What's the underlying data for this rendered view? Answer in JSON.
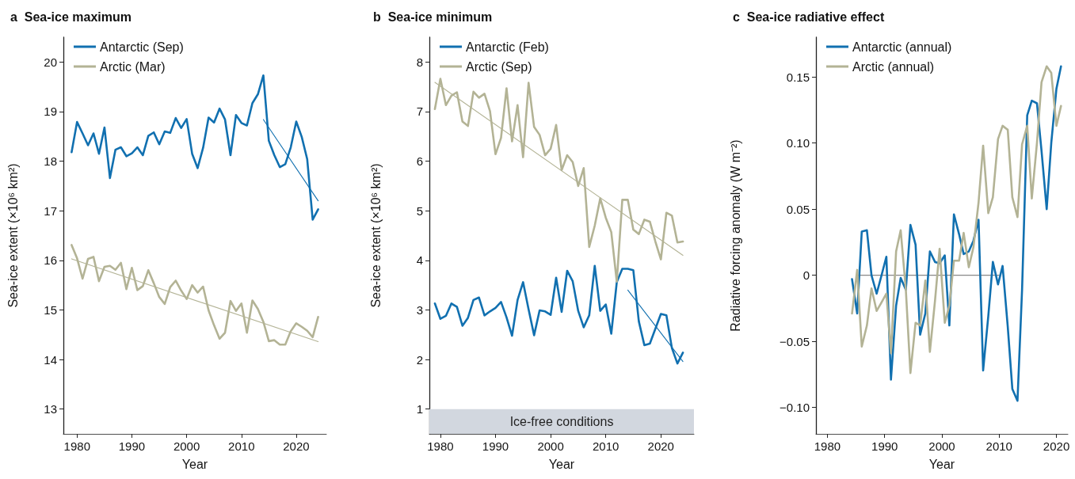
{
  "chart_data": [
    {
      "type": "line",
      "title": "a  Sea-ice maximum",
      "xlabel": "Year",
      "ylabel": "Sea-ice extent (×10⁶ km²)",
      "xlim": [
        1977.5,
        2025.5
      ],
      "xticks": [
        1980,
        1990,
        2000,
        2010,
        2020
      ],
      "ylim": [
        12.5,
        20.5
      ],
      "yticks": [
        13,
        14,
        15,
        16,
        17,
        18,
        19,
        20
      ],
      "legend": "top left",
      "x": [
        1979,
        1980,
        1981,
        1982,
        1983,
        1984,
        1985,
        1986,
        1987,
        1988,
        1989,
        1990,
        1991,
        1992,
        1993,
        1994,
        1995,
        1996,
        1997,
        1998,
        1999,
        2000,
        2001,
        2002,
        2003,
        2004,
        2005,
        2006,
        2007,
        2008,
        2009,
        2010,
        2011,
        2012,
        2013,
        2014,
        2015,
        2016,
        2017,
        2018,
        2019,
        2020,
        2021,
        2022,
        2023,
        2024
      ],
      "series": [
        {
          "name": "Antarctic (Sep)",
          "color": "#1170b0",
          "values": [
            18.18,
            18.79,
            18.56,
            18.32,
            18.56,
            18.15,
            18.68,
            17.66,
            18.23,
            18.28,
            18.1,
            18.16,
            18.28,
            18.12,
            18.51,
            18.58,
            18.34,
            18.6,
            18.57,
            18.87,
            18.67,
            18.85,
            18.15,
            17.86,
            18.27,
            18.88,
            18.78,
            19.06,
            18.84,
            18.12,
            18.93,
            18.77,
            18.72,
            19.17,
            19.35,
            19.73,
            18.41,
            18.12,
            17.88,
            17.94,
            18.28,
            18.8,
            18.49,
            18.04,
            16.82,
            17.03
          ]
        },
        {
          "name": "Arctic (Mar)",
          "color": "#b3b395",
          "values": [
            16.31,
            16.04,
            15.63,
            16.03,
            16.07,
            15.58,
            15.87,
            15.89,
            15.81,
            15.95,
            15.42,
            15.85,
            15.4,
            15.48,
            15.8,
            15.54,
            15.26,
            15.12,
            15.46,
            15.59,
            15.39,
            15.22,
            15.5,
            15.35,
            15.47,
            14.99,
            14.69,
            14.42,
            14.54,
            15.18,
            14.98,
            15.13,
            14.54,
            15.19,
            15.02,
            14.76,
            14.37,
            14.39,
            14.3,
            14.3,
            14.57,
            14.73,
            14.66,
            14.58,
            14.45,
            14.86
          ]
        },
        {
          "color": "#1170b0",
          "x": [
            2014,
            2024
          ],
          "values": [
            18.84,
            17.2
          ]
        },
        {
          "color": "#b3b395",
          "x": [
            1979,
            2024
          ],
          "values": [
            16.03,
            14.36
          ]
        }
      ]
    },
    {
      "type": "line",
      "title": "b  Sea-ice minimum",
      "xlabel": "Year",
      "ylabel": "Sea-ice extent (×10⁶ km²)",
      "xlim": [
        1978,
        2026
      ],
      "xticks": [
        1980,
        1990,
        2000,
        2010,
        2020
      ],
      "ylim": [
        0.5,
        8.5
      ],
      "yticks": [
        1,
        2,
        3,
        4,
        5,
        6,
        7,
        8
      ],
      "legend": "top left",
      "bands": [
        {
          "axis": "y",
          "from": 0.5,
          "to": 1,
          "label": "Ice-free conditions",
          "color": "#d2d7df"
        }
      ],
      "x": [
        1979,
        1980,
        1981,
        1982,
        1983,
        1984,
        1985,
        1986,
        1987,
        1988,
        1989,
        1990,
        1991,
        1992,
        1993,
        1994,
        1995,
        1996,
        1997,
        1998,
        1999,
        2000,
        2001,
        2002,
        2003,
        2004,
        2005,
        2006,
        2007,
        2008,
        2009,
        2010,
        2011,
        2012,
        2013,
        2014,
        2015,
        2016,
        2017,
        2018,
        2019,
        2020,
        2021,
        2022,
        2023,
        2024
      ],
      "series": [
        {
          "name": "Antarctic (Feb)",
          "color": "#1170b0",
          "values": [
            3.13,
            2.82,
            2.88,
            3.13,
            3.06,
            2.68,
            2.84,
            3.2,
            3.25,
            2.89,
            2.97,
            3.04,
            3.16,
            2.85,
            2.48,
            3.2,
            3.56,
            3.01,
            2.49,
            2.99,
            2.97,
            2.9,
            3.65,
            2.96,
            3.79,
            3.58,
            2.98,
            2.65,
            2.89,
            3.89,
            2.98,
            3.11,
            2.52,
            3.56,
            3.83,
            3.83,
            3.8,
            2.77,
            2.29,
            2.32,
            2.62,
            2.92,
            2.89,
            2.23,
            1.92,
            2.14
          ]
        },
        {
          "name": "Arctic (Sep)",
          "color": "#b3b395",
          "values": [
            7.05,
            7.66,
            7.13,
            7.32,
            7.39,
            6.8,
            6.71,
            7.4,
            7.28,
            7.36,
            7.01,
            6.14,
            6.47,
            7.47,
            6.4,
            7.13,
            6.08,
            7.58,
            6.69,
            6.53,
            6.12,
            6.25,
            6.73,
            5.82,
            6.12,
            5.98,
            5.5,
            5.86,
            4.27,
            4.7,
            5.25,
            4.86,
            4.57,
            3.57,
            5.22,
            5.22,
            4.62,
            4.53,
            4.82,
            4.78,
            4.38,
            4.02,
            4.96,
            4.9,
            4.36,
            4.38
          ]
        },
        {
          "color": "#1170b0",
          "x": [
            2014,
            2024
          ],
          "values": [
            3.4,
            1.96
          ]
        },
        {
          "color": "#b3b395",
          "x": [
            1979,
            2024
          ],
          "values": [
            7.59,
            4.1
          ]
        }
      ]
    },
    {
      "type": "line",
      "title": "c  Sea-ice radiative effect",
      "xlabel": "Year",
      "ylabel": "Radiative forcing anomaly (W m⁻²)",
      "xlim": [
        1978,
        2022
      ],
      "xticks": [
        1980,
        1990,
        2000,
        2010,
        2020
      ],
      "ylim": [
        -0.12,
        0.18
      ],
      "yticks": [
        {
          "value": -0.1,
          "label": "−0.10"
        },
        {
          "value": -0.05,
          "label": "−0.05"
        },
        {
          "value": 0,
          "label": "0"
        },
        {
          "value": 0.05,
          "label": "0.05"
        },
        {
          "value": 0.1,
          "label": "0.10"
        },
        {
          "value": 0.15,
          "label": "0.15"
        }
      ],
      "legend": "top left",
      "x": [
        1984.3,
        1985.2,
        1986.0,
        1986.9,
        1987.7,
        1988.6,
        1989.4,
        1990.3,
        1991.1,
        1992.0,
        1992.8,
        1993.7,
        1994.5,
        1995.4,
        1996.2,
        1997.1,
        1997.9,
        1998.8,
        1999.6,
        2000.5,
        2001.3,
        2002.1,
        2003.0,
        2003.8,
        2004.7,
        2005.5,
        2006.4,
        2007.2,
        2008.1,
        2008.9,
        2009.8,
        2010.6,
        2011.5,
        2012.3,
        2013.2,
        2014.0,
        2014.9,
        2015.7,
        2016.6,
        2017.4,
        2018.3,
        2019.1,
        2020.0,
        2020.8
      ],
      "series": [
        {
          "color": "#888888",
          "x": [
            1985,
            2010
          ],
          "values": [
            0,
            0
          ]
        },
        {
          "name": "Antarctic (annual)",
          "color": "#1170b0",
          "values": [
            -0.003,
            -0.029,
            0.033,
            0.034,
            0,
            -0.014,
            -0.001,
            0.014,
            -0.079,
            -0.023,
            -0.002,
            -0.011,
            0.038,
            0.023,
            -0.045,
            -0.029,
            0.018,
            0.01,
            0.009,
            0.015,
            -0.038,
            0.046,
            0.031,
            0.016,
            0.018,
            0.026,
            0.042,
            -0.072,
            -0.031,
            0.01,
            -0.007,
            0.007,
            -0.039,
            -0.086,
            -0.095,
            -0.011,
            0.121,
            0.132,
            0.13,
            0.094,
            0.05,
            0.1,
            0.141,
            0.158
          ]
        },
        {
          "name": "Arctic (annual)",
          "color": "#b3b395",
          "values": [
            -0.029,
            0.004,
            -0.054,
            -0.038,
            -0.01,
            -0.027,
            -0.021,
            -0.014,
            -0.059,
            0.018,
            0.034,
            -0.011,
            -0.074,
            -0.036,
            -0.038,
            -0.004,
            -0.058,
            -0.019,
            0.02,
            -0.036,
            -0.023,
            0.011,
            0.011,
            0.032,
            0.006,
            0.021,
            0.055,
            0.098,
            0.047,
            0.059,
            0.103,
            0.113,
            0.11,
            0.059,
            0.044,
            0.099,
            0.113,
            0.058,
            0.1,
            0.146,
            0.158,
            0.153,
            0.113,
            0.128
          ]
        }
      ]
    }
  ]
}
